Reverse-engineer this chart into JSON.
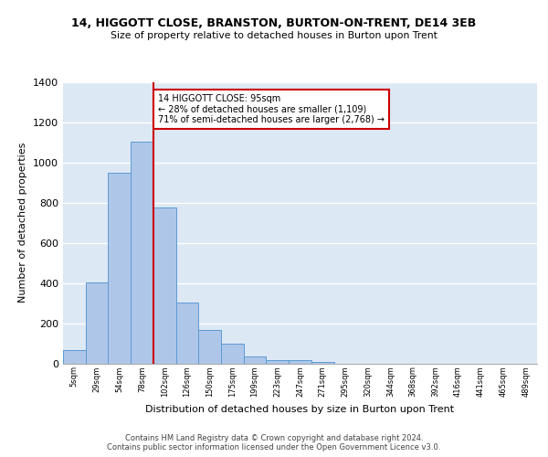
{
  "title_line1": "14, HIGGOTT CLOSE, BRANSTON, BURTON-ON-TRENT, DE14 3EB",
  "title_line2": "Size of property relative to detached houses in Burton upon Trent",
  "xlabel": "Distribution of detached houses by size in Burton upon Trent",
  "ylabel": "Number of detached properties",
  "categories": [
    "5sqm",
    "29sqm",
    "54sqm",
    "78sqm",
    "102sqm",
    "126sqm",
    "150sqm",
    "175sqm",
    "199sqm",
    "223sqm",
    "247sqm",
    "271sqm",
    "295sqm",
    "320sqm",
    "344sqm",
    "368sqm",
    "392sqm",
    "416sqm",
    "441sqm",
    "465sqm",
    "489sqm"
  ],
  "values": [
    65,
    405,
    950,
    1105,
    775,
    305,
    165,
    97,
    35,
    18,
    15,
    8,
    0,
    0,
    0,
    0,
    0,
    0,
    0,
    0,
    0
  ],
  "bar_color": "#aec6e8",
  "bar_edge_color": "#5b9bd5",
  "red_line_x": 3.5,
  "red_line_color": "#cc0000",
  "annotation_text": "14 HIGGOTT CLOSE: 95sqm\n← 28% of detached houses are smaller (1,109)\n71% of semi-detached houses are larger (2,768) →",
  "annotation_box_color": "#ffffff",
  "annotation_box_edge": "#cc0000",
  "ylim": [
    0,
    1400
  ],
  "yticks": [
    0,
    200,
    400,
    600,
    800,
    1000,
    1200,
    1400
  ],
  "bg_color": "#dde8f5",
  "grid_color": "#ffffff",
  "footer_line1": "Contains HM Land Registry data © Crown copyright and database right 2024.",
  "footer_line2": "Contains public sector information licensed under the Open Government Licence v3.0."
}
